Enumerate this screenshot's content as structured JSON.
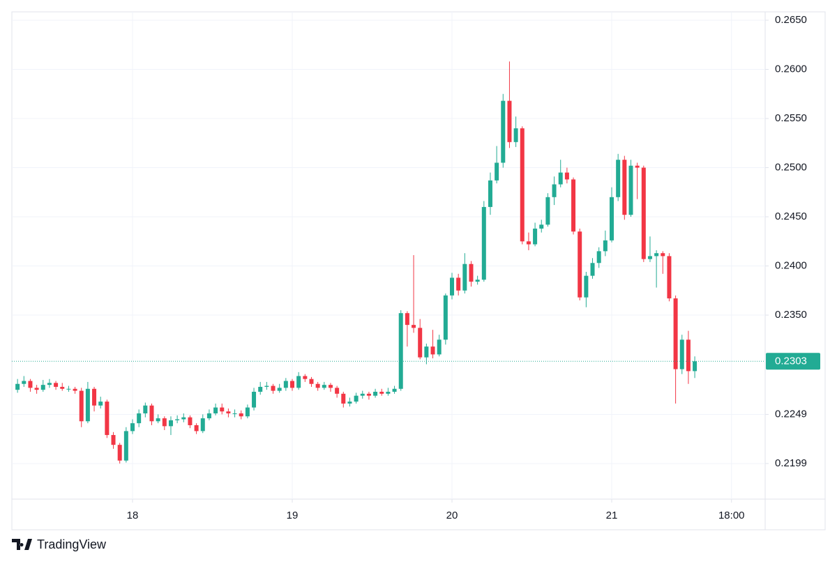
{
  "chart_data": {
    "type": "candlestick",
    "up_color": "#22ab94",
    "down_color": "#f23645",
    "grid": true,
    "xlim": [
      17.2445,
      21.9607
    ],
    "ylim": [
      0.21628,
      0.26585
    ],
    "xticks": [
      18,
      19,
      20,
      21,
      {
        "value": 21.75,
        "label": "18:00"
      }
    ],
    "yticks": [
      {
        "value": 0.265,
        "label": "0.2650"
      },
      {
        "value": 0.26,
        "label": "0.2600"
      },
      {
        "value": 0.255,
        "label": "0.2550"
      },
      {
        "value": 0.25,
        "label": "0.2500"
      },
      {
        "value": 0.245,
        "label": "0.2450"
      },
      {
        "value": 0.24,
        "label": "0.2400"
      },
      {
        "value": 0.235,
        "label": "0.2350"
      },
      0.2249,
      0.2199
    ],
    "last_value": 0.2303,
    "x": [
      17.28,
      17.32,
      17.36,
      17.4,
      17.44,
      17.48,
      17.52,
      17.56,
      17.6,
      17.64,
      17.68,
      17.72,
      17.76,
      17.8,
      17.84,
      17.88,
      17.92,
      17.96,
      18,
      18.04,
      18.08,
      18.12,
      18.16,
      18.2,
      18.24,
      18.28,
      18.32,
      18.36,
      18.4,
      18.44,
      18.48,
      18.52,
      18.56,
      18.6,
      18.64,
      18.68,
      18.72,
      18.76,
      18.8,
      18.84,
      18.88,
      18.92,
      18.96,
      19,
      19.04,
      19.08,
      19.12,
      19.16,
      19.2,
      19.24,
      19.28,
      19.32,
      19.36,
      19.4,
      19.44,
      19.48,
      19.52,
      19.56,
      19.6,
      19.64,
      19.68,
      19.72,
      19.76,
      19.8,
      19.84,
      19.88,
      19.92,
      19.96,
      20,
      20.04,
      20.08,
      20.12,
      20.16,
      20.2,
      20.24,
      20.28,
      20.32,
      20.36,
      20.4,
      20.44,
      20.48,
      20.52,
      20.56,
      20.6,
      20.64,
      20.68,
      20.72,
      20.76,
      20.8,
      20.84,
      20.88,
      20.92,
      20.96,
      21,
      21.04,
      21.08,
      21.12,
      21.16,
      21.2,
      21.24,
      21.28,
      21.32,
      21.36,
      21.4,
      21.44,
      21.48,
      21.52
    ],
    "open": [
      0.2274,
      0.228,
      0.2283,
      0.2276,
      0.2274,
      0.2279,
      0.2281,
      0.2277,
      0.2275,
      0.2275,
      0.2273,
      0.2242,
      0.2275,
      0.2258,
      0.2262,
      0.2228,
      0.2218,
      0.2202,
      0.2232,
      0.224,
      0.225,
      0.2258,
      0.2242,
      0.2245,
      0.2237,
      0.2243,
      0.2244,
      0.2246,
      0.2238,
      0.2232,
      0.2245,
      0.225,
      0.2256,
      0.2252,
      0.225,
      0.225,
      0.2247,
      0.2256,
      0.2272,
      0.2277,
      0.2278,
      0.2273,
      0.2276,
      0.2283,
      0.2276,
      0.2288,
      0.2285,
      0.228,
      0.2276,
      0.2279,
      0.2276,
      0.227,
      0.226,
      0.2262,
      0.2268,
      0.227,
      0.2268,
      0.2272,
      0.227,
      0.2272,
      0.2275,
      0.2352,
      0.234,
      0.2337,
      0.2307,
      0.2318,
      0.231,
      0.2325,
      0.237,
      0.2388,
      0.2375,
      0.2402,
      0.2384,
      0.2386,
      0.246,
      0.2487,
      0.2505,
      0.2568,
      0.2526,
      0.254,
      0.2425,
      0.2422,
      0.2438,
      0.2442,
      0.247,
      0.2483,
      0.2495,
      0.2488,
      0.2435,
      0.2368,
      0.239,
      0.2403,
      0.2415,
      0.2426,
      0.247,
      0.2508,
      0.2452,
      0.2502,
      0.25,
      0.2407,
      0.241,
      0.2413,
      0.241,
      0.2367,
      0.2295,
      0.2325,
      0.2293
    ],
    "high": [
      0.2285,
      0.2288,
      0.2285,
      0.2279,
      0.2284,
      0.2285,
      0.2283,
      0.2281,
      0.2278,
      0.2277,
      0.2276,
      0.2282,
      0.2277,
      0.2267,
      0.2264,
      0.2231,
      0.222,
      0.2236,
      0.2244,
      0.2254,
      0.2261,
      0.226,
      0.2249,
      0.2247,
      0.2247,
      0.2248,
      0.225,
      0.2248,
      0.224,
      0.2249,
      0.2254,
      0.226,
      0.226,
      0.2255,
      0.2254,
      0.2253,
      0.2259,
      0.2276,
      0.2282,
      0.2282,
      0.228,
      0.228,
      0.2286,
      0.2285,
      0.2292,
      0.229,
      0.2287,
      0.2282,
      0.2282,
      0.2281,
      0.2278,
      0.2272,
      0.2266,
      0.2271,
      0.2273,
      0.2272,
      0.2275,
      0.2275,
      0.2276,
      0.2278,
      0.2355,
      0.2354,
      0.2411,
      0.2346,
      0.2321,
      0.2335,
      0.233,
      0.2372,
      0.2393,
      0.2392,
      0.2413,
      0.2405,
      0.239,
      0.2466,
      0.2495,
      0.2522,
      0.2575,
      0.2608,
      0.2552,
      0.2542,
      0.2434,
      0.2444,
      0.2447,
      0.2474,
      0.2491,
      0.2508,
      0.25,
      0.249,
      0.2438,
      0.2394,
      0.2408,
      0.2419,
      0.2436,
      0.248,
      0.2514,
      0.2512,
      0.2508,
      0.2505,
      0.2502,
      0.243,
      0.2416,
      0.2415,
      0.2413,
      0.237,
      0.233,
      0.2334,
      0.2308
    ],
    "low": [
      0.2271,
      0.2277,
      0.2272,
      0.227,
      0.2272,
      0.2276,
      0.2274,
      0.2273,
      0.2272,
      0.227,
      0.2236,
      0.224,
      0.2252,
      0.2255,
      0.2225,
      0.2214,
      0.2199,
      0.22,
      0.2229,
      0.2236,
      0.2246,
      0.2238,
      0.224,
      0.2233,
      0.2228,
      0.224,
      0.2241,
      0.2235,
      0.2229,
      0.223,
      0.2243,
      0.2248,
      0.2249,
      0.2246,
      0.2246,
      0.2244,
      0.2245,
      0.2253,
      0.2269,
      0.2274,
      0.227,
      0.2271,
      0.2273,
      0.2273,
      0.2274,
      0.2282,
      0.2277,
      0.2273,
      0.2274,
      0.2272,
      0.2266,
      0.2256,
      0.2257,
      0.226,
      0.2265,
      0.2264,
      0.2266,
      0.2268,
      0.2268,
      0.227,
      0.2273,
      0.2318,
      0.2332,
      0.2305,
      0.23,
      0.2306,
      0.2308,
      0.232,
      0.2366,
      0.237,
      0.2372,
      0.2379,
      0.2381,
      0.2384,
      0.2452,
      0.2484,
      0.25,
      0.252,
      0.2521,
      0.2422,
      0.2416,
      0.242,
      0.2434,
      0.244,
      0.2462,
      0.248,
      0.2484,
      0.2432,
      0.2365,
      0.2358,
      0.2387,
      0.2398,
      0.241,
      0.2424,
      0.2466,
      0.2447,
      0.245,
      0.2468,
      0.2404,
      0.2404,
      0.2378,
      0.2392,
      0.2364,
      0.226,
      0.229,
      0.228,
      0.2286
    ],
    "close": [
      0.228,
      0.2283,
      0.2276,
      0.2274,
      0.2279,
      0.2281,
      0.2277,
      0.2275,
      0.2275,
      0.2273,
      0.2242,
      0.2275,
      0.2258,
      0.2262,
      0.2228,
      0.2218,
      0.2202,
      0.2232,
      0.224,
      0.225,
      0.2258,
      0.2242,
      0.2245,
      0.2237,
      0.2243,
      0.2244,
      0.2246,
      0.2238,
      0.2232,
      0.2245,
      0.225,
      0.2256,
      0.2252,
      0.225,
      0.225,
      0.2247,
      0.2256,
      0.2272,
      0.2277,
      0.2278,
      0.2273,
      0.2276,
      0.2283,
      0.2276,
      0.2288,
      0.2285,
      0.228,
      0.2276,
      0.2279,
      0.2276,
      0.227,
      0.226,
      0.2262,
      0.2268,
      0.227,
      0.2268,
      0.2272,
      0.227,
      0.2272,
      0.2275,
      0.2352,
      0.234,
      0.2337,
      0.2307,
      0.2318,
      0.231,
      0.2325,
      0.237,
      0.2388,
      0.2375,
      0.2402,
      0.2384,
      0.2386,
      0.246,
      0.2487,
      0.2505,
      0.2568,
      0.2526,
      0.254,
      0.2425,
      0.2422,
      0.2438,
      0.2442,
      0.247,
      0.2483,
      0.2495,
      0.2488,
      0.2435,
      0.2368,
      0.239,
      0.2403,
      0.2415,
      0.2426,
      0.247,
      0.2508,
      0.2452,
      0.2502,
      0.25,
      0.2407,
      0.241,
      0.2413,
      0.241,
      0.2367,
      0.2295,
      0.2325,
      0.2293,
      0.2303
    ]
  },
  "branding": "TradingView"
}
